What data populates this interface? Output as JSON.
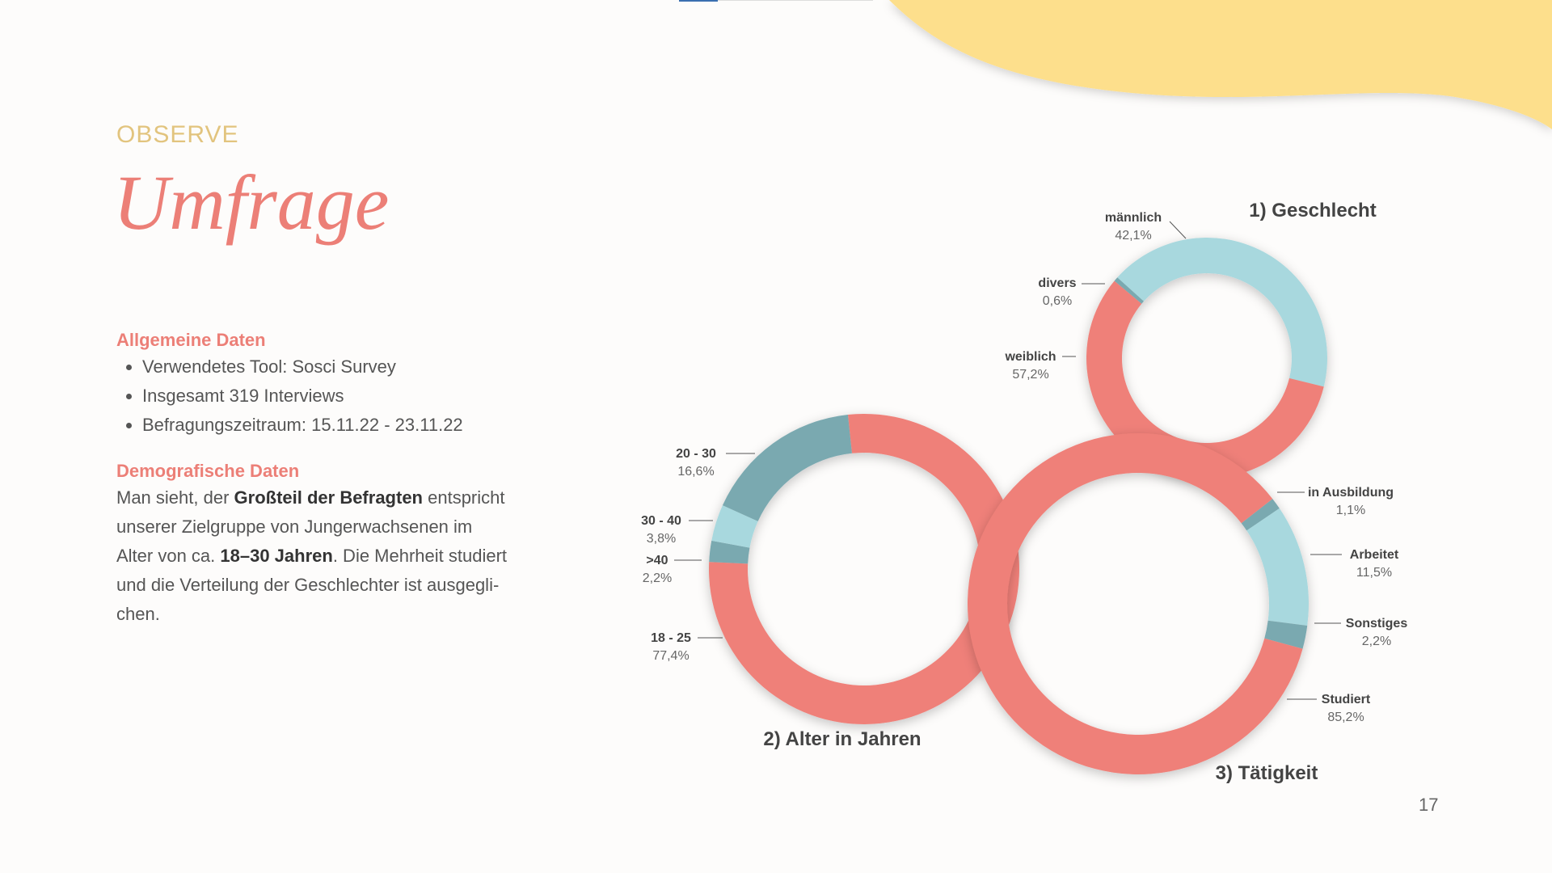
{
  "header": {
    "kicker": "OBSERVE",
    "title": "Umfrage"
  },
  "sections": [
    {
      "heading": "Allgemeine Daten",
      "bullets": [
        "Verwendetes Tool: Sosci Survey",
        "Insgesamt 319 Interviews",
        "Befragungszeitraum: 15.11.22 - 23.11.22"
      ]
    },
    {
      "heading": "Demografische Daten",
      "lines": [
        [
          {
            "text": "Man sieht, der ",
            "bold": false
          },
          {
            "text": "Großteil der Befragten",
            "bold": true
          },
          {
            "text": " entspricht",
            "bold": false
          }
        ],
        [
          {
            "text": "unserer Zielgruppe von Jungerwachsenen im",
            "bold": false
          }
        ],
        [
          {
            "text": "Alter von ca. ",
            "bold": false
          },
          {
            "text": "18–30 Jahren",
            "bold": true
          },
          {
            "text": ". Die Mehrheit studiert",
            "bold": false
          }
        ],
        [
          {
            "text": "und die Verteilung der Geschlechter ist ausgegli-",
            "bold": false
          }
        ],
        [
          {
            "text": "chen.",
            "bold": false
          }
        ]
      ]
    }
  ],
  "page_number": 17,
  "chart_data": [
    {
      "type": "donut",
      "title": "1) Geschlecht",
      "categories": [
        "männlich",
        "weiblich",
        "divers"
      ],
      "values": [
        42.1,
        57.2,
        0.6
      ],
      "value_labels": [
        "42,1%",
        "57,2%",
        "0,6%"
      ],
      "colors": [
        "#a8d8de",
        "#ef8079",
        "#7aa9b0"
      ]
    },
    {
      "type": "donut",
      "title": "2) Alter in Jahren",
      "categories": [
        "18 - 25",
        ">40",
        "30 - 40",
        "20 - 30"
      ],
      "values": [
        77.4,
        2.2,
        3.8,
        16.6
      ],
      "value_labels": [
        "77,4%",
        "2,2%",
        "3,8%",
        "16,6%"
      ],
      "colors": [
        "#ef8079",
        "#7aa9b0",
        "#a8d8de",
        "#7aa9b0"
      ]
    },
    {
      "type": "donut",
      "title": "3) Tätigkeit",
      "categories": [
        "in Ausbildung",
        "Arbeitet",
        "Sonstiges",
        "Studiert"
      ],
      "values": [
        1.1,
        11.5,
        2.2,
        85.2
      ],
      "value_labels": [
        "1,1%",
        "11,5%",
        "2,2%",
        "85,2%"
      ],
      "colors": [
        "#7aa9b0",
        "#a8d8de",
        "#7aa9b0",
        "#ef8079"
      ]
    }
  ]
}
